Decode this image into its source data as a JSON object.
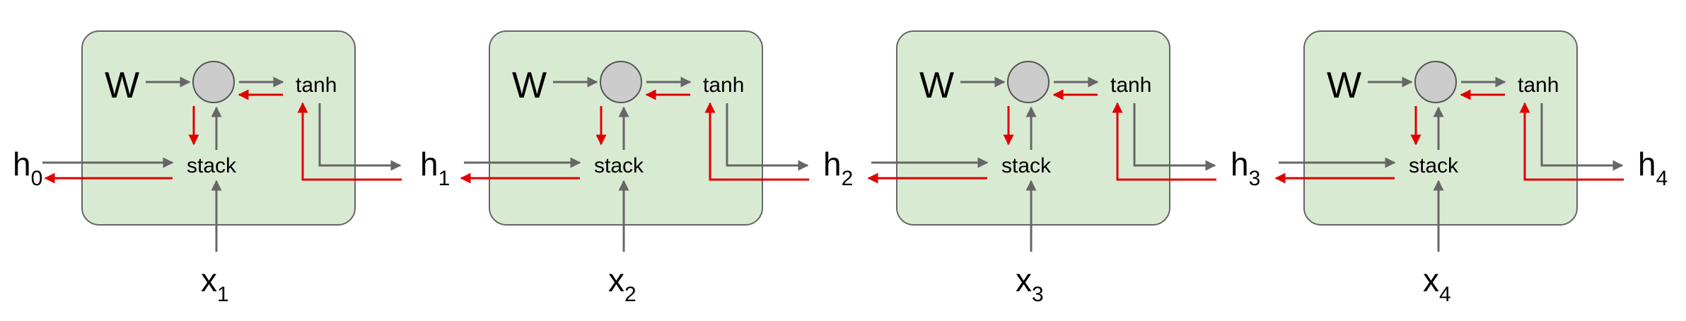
{
  "cells": [
    {
      "w_label": "W",
      "op_label": "tanh",
      "stack_label": "stack",
      "x_label": "x",
      "x_sub": "1"
    },
    {
      "w_label": "W",
      "op_label": "tanh",
      "stack_label": "stack",
      "x_label": "x",
      "x_sub": "2"
    },
    {
      "w_label": "W",
      "op_label": "tanh",
      "stack_label": "stack",
      "x_label": "x",
      "x_sub": "3"
    },
    {
      "w_label": "W",
      "op_label": "tanh",
      "stack_label": "stack",
      "x_label": "x",
      "x_sub": "4"
    }
  ],
  "hidden_states": [
    {
      "label": "h",
      "sub": "0"
    },
    {
      "label": "h",
      "sub": "1"
    },
    {
      "label": "h",
      "sub": "2"
    },
    {
      "label": "h",
      "sub": "3"
    },
    {
      "label": "h",
      "sub": "4"
    }
  ],
  "colors": {
    "cell_fill": "#d9ead3",
    "forward_arrow": "#666666",
    "backward_arrow": "#e00000",
    "node_fill": "#cccccc"
  }
}
